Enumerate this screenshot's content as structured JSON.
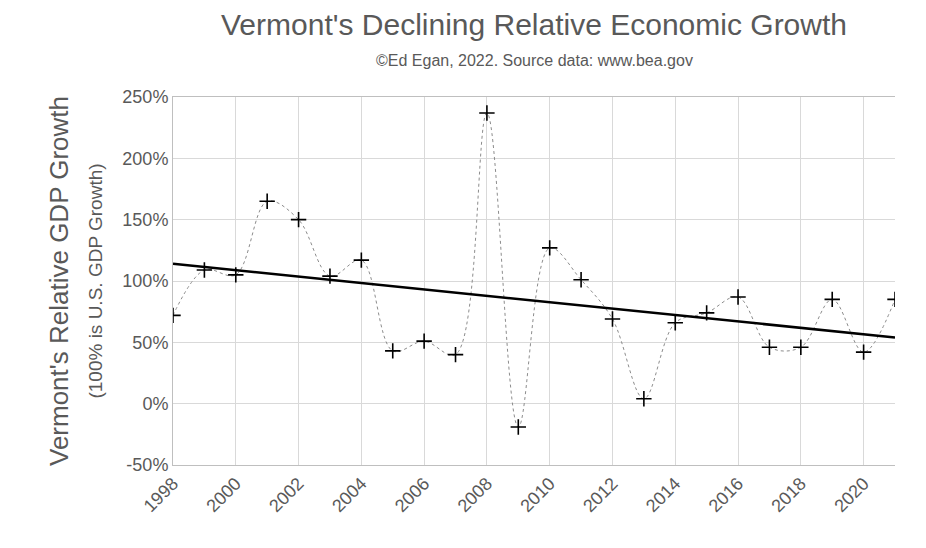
{
  "chart_data": {
    "type": "line",
    "title": "Vermont's Declining Relative Economic Growth",
    "subtitle": "©Ed Egan, 2022. Source data: www.bea.gov",
    "y_label": "Vermont's Relative GDP Growth",
    "y_label_sub": "(100% is U.S. GDP Growth)",
    "x": [
      1998,
      1999,
      2000,
      2001,
      2002,
      2003,
      2004,
      2005,
      2006,
      2007,
      2008,
      2009,
      2010,
      2011,
      2012,
      2013,
      2014,
      2015,
      2016,
      2017,
      2018,
      2019,
      2020,
      2021
    ],
    "series": [
      {
        "type": "line",
        "color": "#000000",
        "marker": "cross",
        "line_style": "dotted",
        "values": [
          72,
          109,
          105,
          165,
          150,
          104,
          117,
          43,
          51,
          40,
          237,
          -19,
          127,
          101,
          69,
          4,
          66,
          74,
          87,
          46,
          46,
          85,
          42,
          85
        ]
      },
      {
        "type": "line",
        "color": "#000000",
        "marker": "none",
        "line_style": "solid",
        "x": [
          1998,
          2021
        ],
        "values": [
          114,
          54
        ]
      }
    ],
    "xlim": [
      1998,
      2021
    ],
    "xticks": [
      1998,
      2000,
      2002,
      2004,
      2006,
      2008,
      2010,
      2012,
      2014,
      2016,
      2018,
      2020
    ],
    "ylim": [
      -50,
      250
    ],
    "yticks": [
      {
        "value": -50,
        "label": "-50%"
      },
      {
        "value": 0,
        "label": "0%"
      },
      {
        "value": 50,
        "label": "50%"
      },
      {
        "value": 100,
        "label": "100%"
      },
      {
        "value": 150,
        "label": "150%"
      },
      {
        "value": 200,
        "label": "200%"
      },
      {
        "value": 250,
        "label": "250%"
      }
    ],
    "grid": true
  }
}
